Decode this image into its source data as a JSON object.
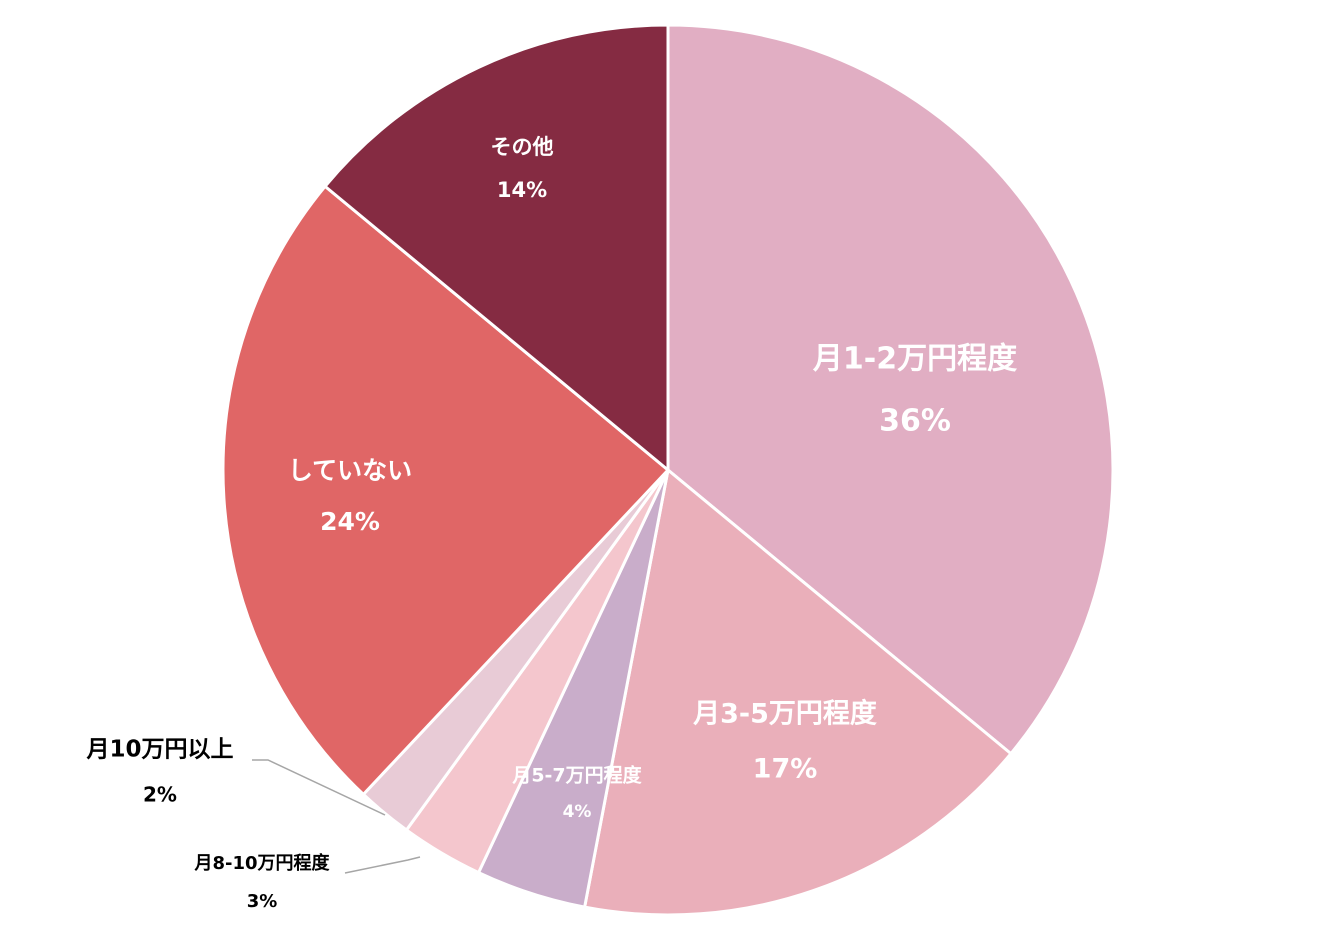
{
  "chart_data": {
    "type": "pie",
    "title": "",
    "slices": [
      {
        "name": "月1-2万円程度",
        "value": 36,
        "label": "36%",
        "color": "#E1AEC3",
        "text_color": "#FFFFFF"
      },
      {
        "name": "月3-5万円程度",
        "value": 17,
        "label": "17%",
        "color": "#EAAFBA",
        "text_color": "#FFFFFF"
      },
      {
        "name": "月5-7万円程度",
        "value": 4,
        "label": "4%",
        "color": "#C9ADCA",
        "text_color": "#FFFFFF"
      },
      {
        "name": "月8-10万円程度",
        "value": 3,
        "label": "3%",
        "color": "#F4C6CD",
        "text_color": "#000000"
      },
      {
        "name": "月10万円以上",
        "value": 2,
        "label": "2%",
        "color": "#E8CBD6",
        "text_color": "#000000"
      },
      {
        "name": "していない",
        "value": 24,
        "label": "24%",
        "color": "#E06666",
        "text_color": "#FFFFFF"
      },
      {
        "name": "その他",
        "value": 14,
        "label": "14%",
        "color": "#852B42",
        "text_color": "#FFFFFF"
      }
    ],
    "start_angle_deg": 0,
    "direction": "clockwise",
    "legend": "none",
    "data_labels": "category and percentage",
    "slice_border_color": "#FFFFFF",
    "leader_line_color": "#A6A6A6"
  }
}
